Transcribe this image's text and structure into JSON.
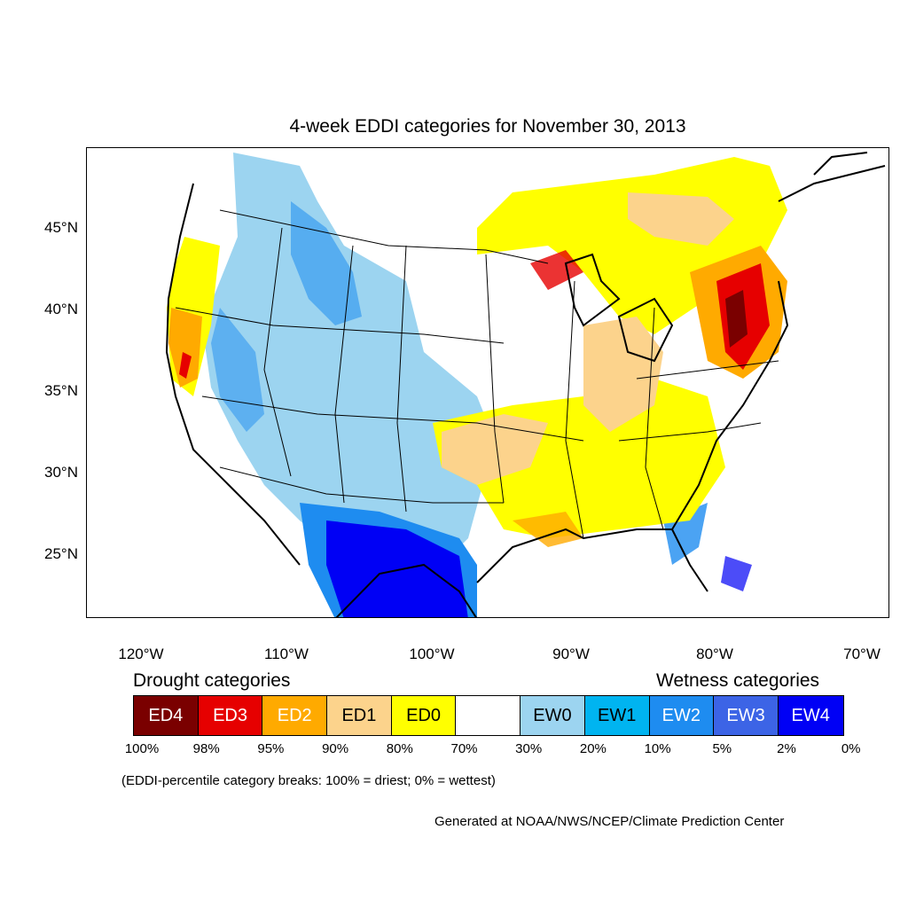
{
  "title": "4-week EDDI categories for November 30, 2013",
  "lat_labels": [
    "45°N",
    "40°N",
    "35°N",
    "30°N",
    "25°N"
  ],
  "lon_labels": [
    "120°W",
    "110°W",
    "100°W",
    "90°W",
    "80°W",
    "70°W"
  ],
  "legend": {
    "drought_heading": "Drought categories",
    "wetness_heading": "Wetness categories",
    "categories": [
      {
        "label": "ED4",
        "color": "#7a0000",
        "text_color": "#ffffff"
      },
      {
        "label": "ED3",
        "color": "#e60000",
        "text_color": "#ffffff"
      },
      {
        "label": "ED2",
        "color": "#ffaa00",
        "text_color": "#ffffff"
      },
      {
        "label": "ED1",
        "color": "#fcd38c",
        "text_color": "#000000"
      },
      {
        "label": "ED0",
        "color": "#ffff00",
        "text_color": "#000000"
      },
      {
        "label": "",
        "color": "#ffffff",
        "text_color": "#000000"
      },
      {
        "label": "EW0",
        "color": "#9cd4f0",
        "text_color": "#000000"
      },
      {
        "label": "EW1",
        "color": "#00b4f0",
        "text_color": "#000000"
      },
      {
        "label": "EW2",
        "color": "#1e8cf0",
        "text_color": "#ffffff"
      },
      {
        "label": "EW3",
        "color": "#3c64e6",
        "text_color": "#ffffff"
      },
      {
        "label": "EW4",
        "color": "#0000f5",
        "text_color": "#ffffff"
      }
    ],
    "percentiles": [
      "100%",
      "98%",
      "95%",
      "90%",
      "80%",
      "70%",
      "30%",
      "20%",
      "10%",
      "5%",
      "2%",
      "0%"
    ]
  },
  "note": "(EDDI-percentile category breaks: 100% = driest; 0% = wettest)",
  "credit": "Generated at NOAA/NWS/NCEP/Climate Prediction Center"
}
